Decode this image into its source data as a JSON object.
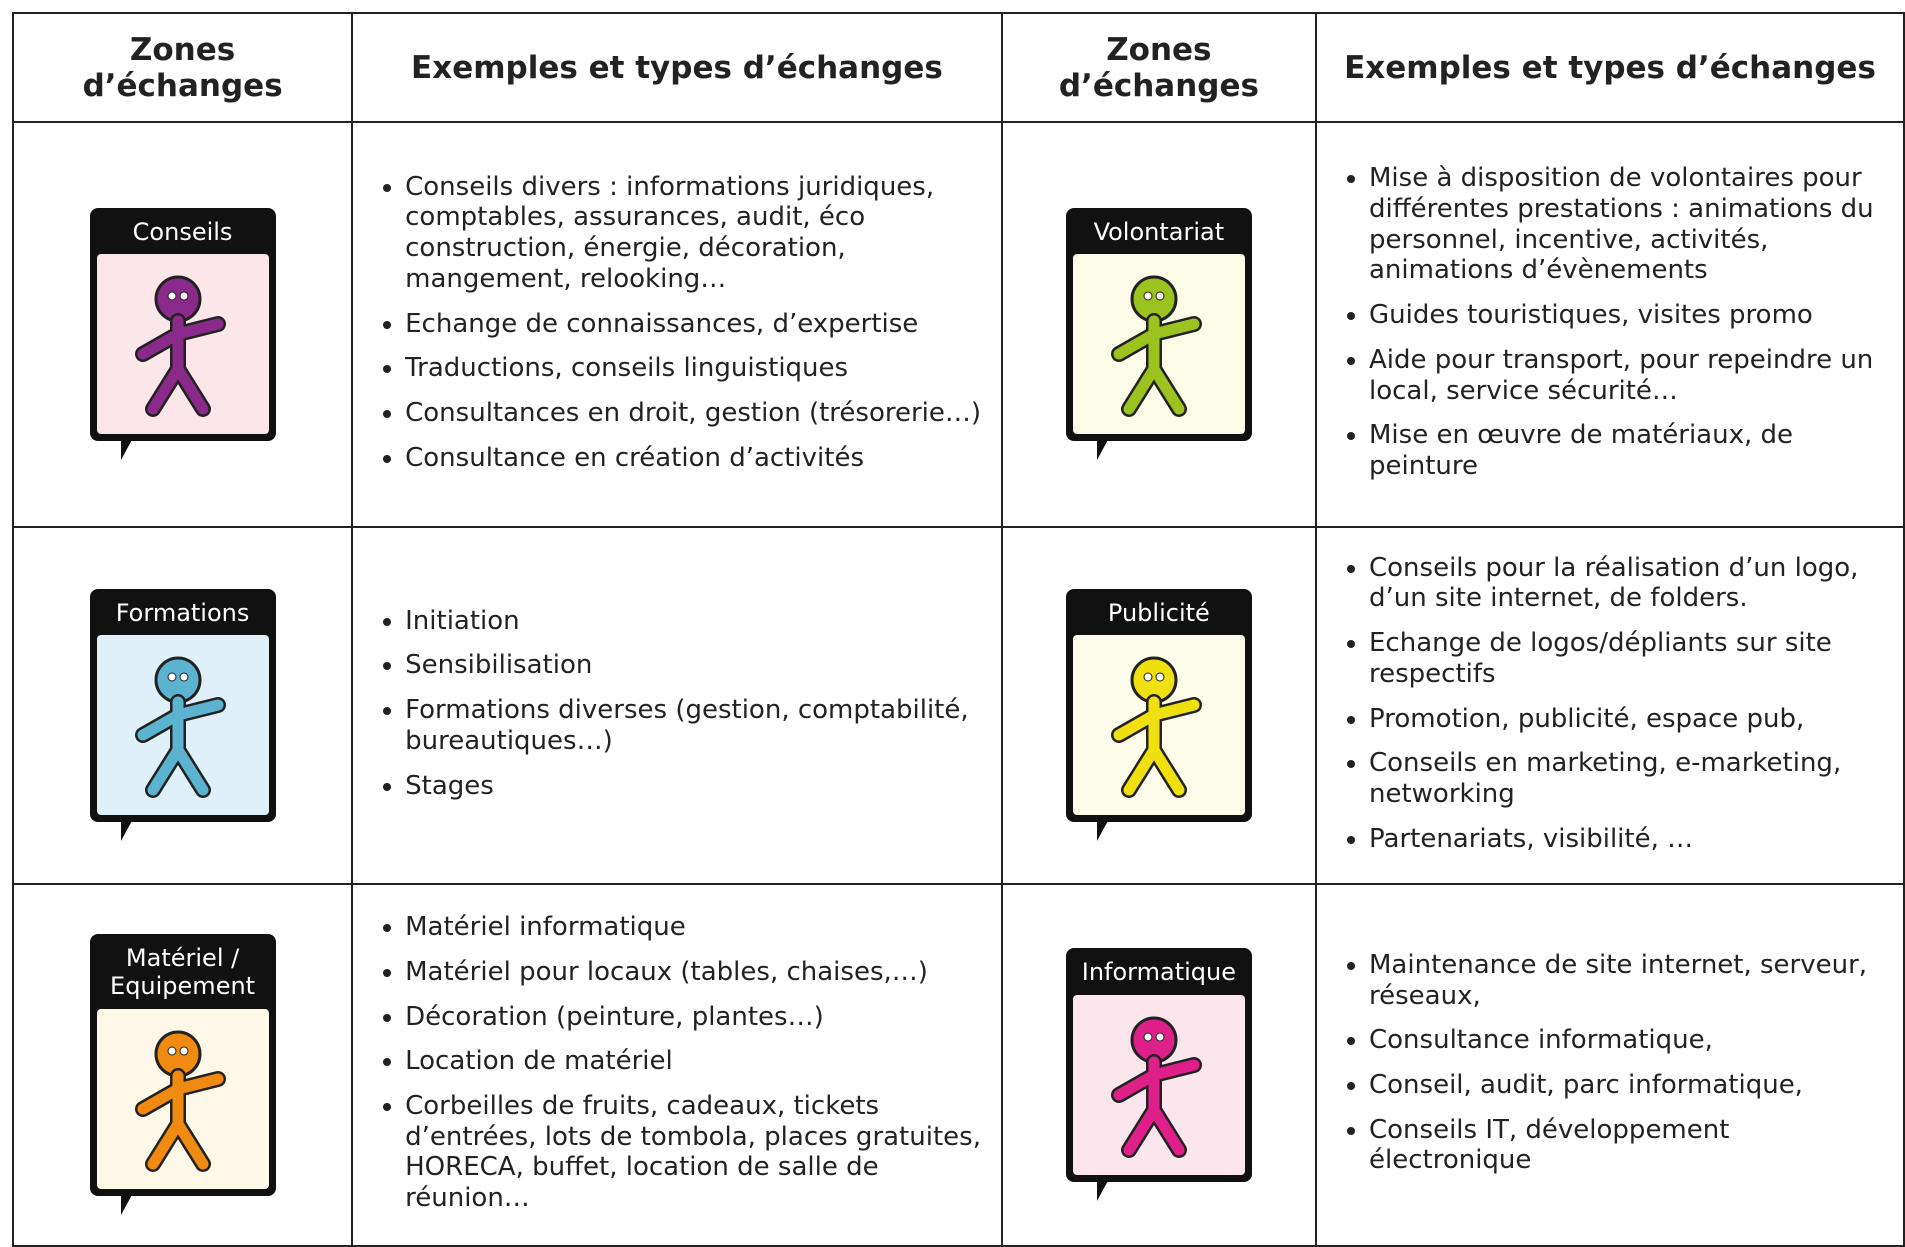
{
  "header": [
    "Zones d’échanges",
    "Exemples et types d’échanges",
    "Zones d’échanges",
    "Exemples et types d’échanges"
  ],
  "rows": [
    [
      {
        "zone": "Conseils",
        "items": [
          "Conseils divers : informations juridiques, comptables, assurances, audit, éco construction, énergie, décoration, mangement, relooking…",
          "Echange de connaissances, d’expertise",
          "Traductions, conseils linguistiques",
          "Consultances en droit, gestion (trésorerie…)",
          "Consultance en création d’activités"
        ]
      },
      {
        "zone": "Volontariat",
        "items": [
          "Mise à disposition de volontaires pour différentes prestations : animations du personnel, incentive, activités, animations d’évènements",
          "Guides touristiques, visites promo",
          "Aide pour transport, pour repeindre un local, service sécurité…",
          "Mise en œuvre de matériaux, de peinture"
        ]
      }
    ],
    [
      {
        "zone": "Formations",
        "items": [
          "Initiation",
          "Sensibilisation",
          "Formations diverses (gestion, comptabilité, bureautiques…)",
          "Stages"
        ]
      },
      {
        "zone": "Publicité",
        "items": [
          "Conseils pour la réalisation d’un logo, d’un site internet, de folders.",
          "Echange de logos/dépliants sur site respectifs",
          "Promotion, publicité, espace pub,",
          "Conseils en marketing, e-marketing, networking",
          "Partenariats, visibilité, …"
        ]
      }
    ],
    [
      {
        "zone": "Matériel / Equipement",
        "items": [
          "Matériel informatique",
          "Matériel pour locaux (tables, chaises,…)",
          "Décoration (peinture, plantes…)",
          "Location de matériel",
          "Corbeilles de fruits, cadeaux, tickets d’entrées, lots de tombola, places gratuites, HORECA, buffet, location de salle de réunion…"
        ]
      },
      {
        "zone": "Informatique",
        "items": [
          "Maintenance de site internet, serveur, réseaux,",
          "Consultance informatique,",
          "Conseil, audit, parc informatique,",
          "Conseils IT, développement électronique"
        ]
      }
    ]
  ]
}
